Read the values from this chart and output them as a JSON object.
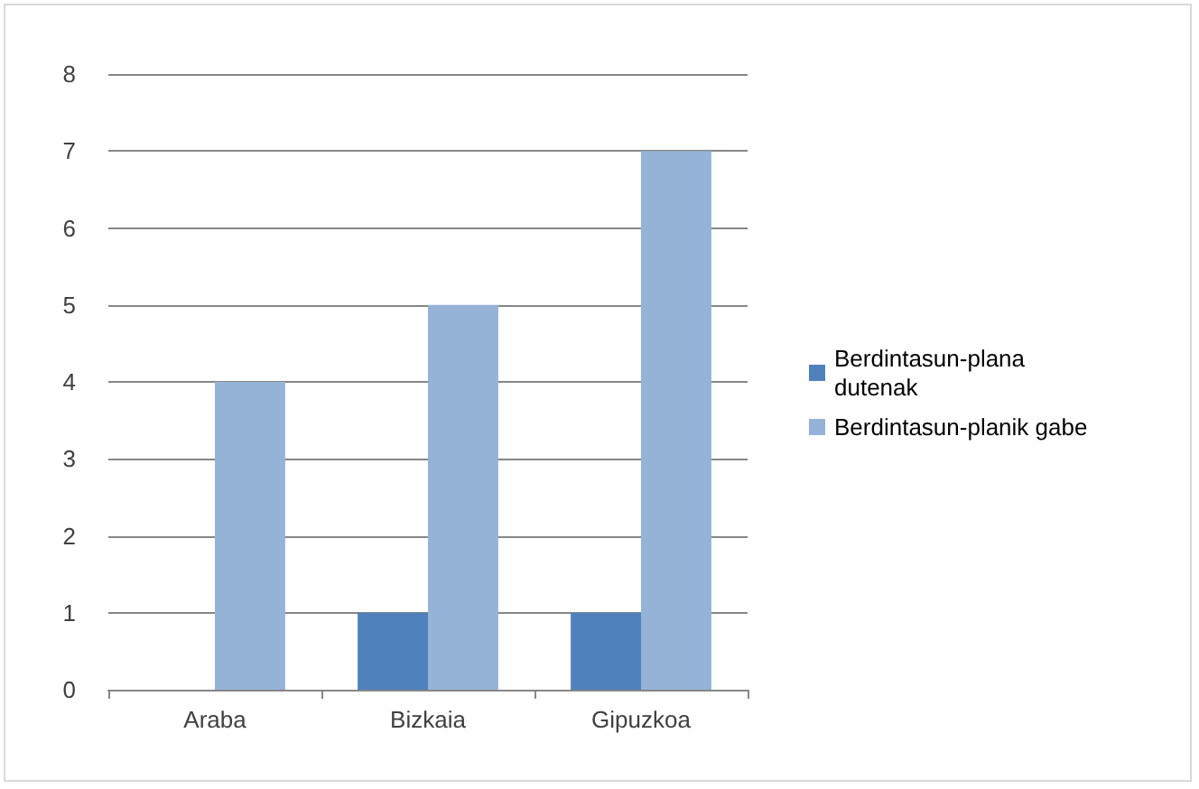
{
  "chart_data": {
    "type": "bar",
    "categories": [
      "Araba",
      "Bizkaia",
      "Gipuzkoa"
    ],
    "series": [
      {
        "name": "Berdintasun-plana dutenak",
        "color": "#4f81bd",
        "values": [
          0,
          1,
          1
        ]
      },
      {
        "name": "Berdintasun-planik gabe",
        "color": "#95b3d7",
        "values": [
          4,
          5,
          7
        ]
      }
    ],
    "ylim": [
      0,
      8
    ],
    "yticks": [
      0,
      1,
      2,
      3,
      4,
      5,
      6,
      7,
      8
    ],
    "grid": "y",
    "legend": "right"
  }
}
